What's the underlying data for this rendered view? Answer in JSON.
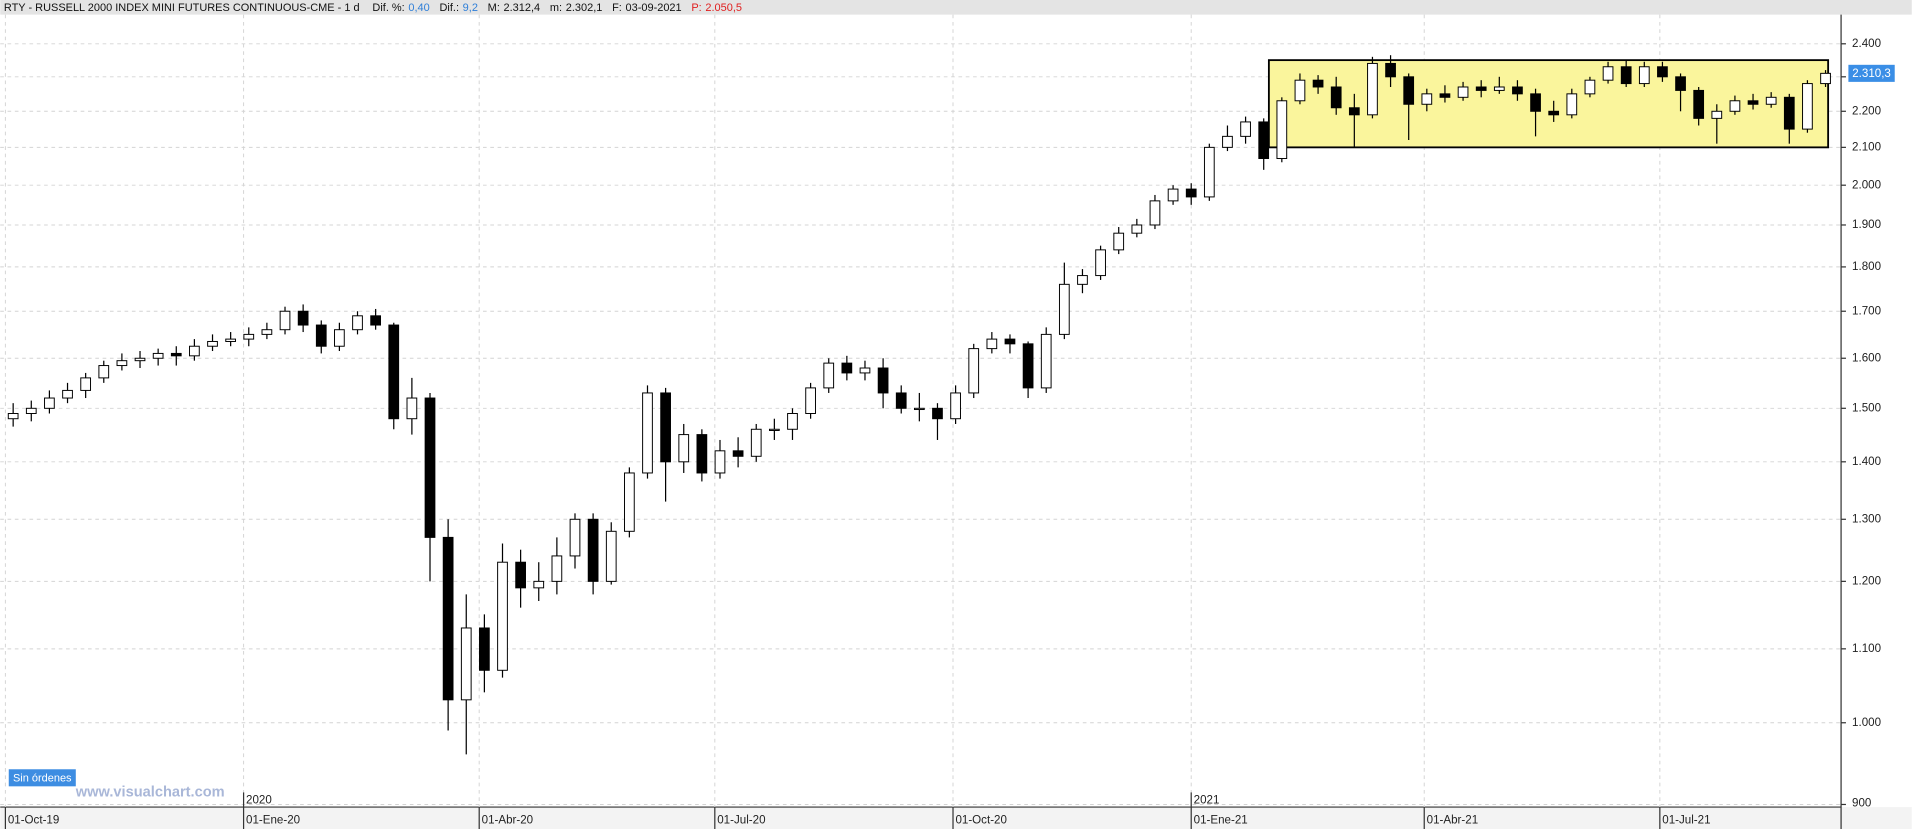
{
  "header": {
    "title": "RTY - RUSSELL 2000 INDEX MINI FUTURES CONTINUOUS-CME - 1 d",
    "items": [
      {
        "label": "Dif. %:",
        "value": "0,40",
        "color": "#2f7fd8"
      },
      {
        "label": "Dif.:",
        "value": "9,2",
        "color": "#2f7fd8"
      },
      {
        "label": "M:",
        "value": "2.312,4",
        "color": "#111111"
      },
      {
        "label": "m:",
        "value": "2.302,1",
        "color": "#111111"
      },
      {
        "label": "F:",
        "value": "03-09-2021",
        "color": "#111111"
      },
      {
        "label": "P:",
        "value": "2.050,5",
        "color": "#e02020"
      }
    ]
  },
  "footer": {
    "status": "Sin órdenes",
    "watermark": "www.visualchart.com"
  },
  "chart_data": {
    "type": "candlestick",
    "log": true,
    "grid": true,
    "up_color": "#ffffff",
    "down_color": "#000000",
    "wick_color": "#000000",
    "xlim": [
      "2019-09-29",
      "2021-09-09"
    ],
    "xticks": [
      {
        "value": "2019-10-01",
        "label": "01-Oct-19"
      },
      {
        "value": "2020-01-01",
        "label": "01-Ene-20"
      },
      {
        "value": "2020-04-01",
        "label": "01-Abr-20"
      },
      {
        "value": "2020-07-01",
        "label": "01-Jul-20"
      },
      {
        "value": "2020-10-01",
        "label": "01-Oct-20"
      },
      {
        "value": "2021-01-01",
        "label": "01-Ene-21"
      },
      {
        "value": "2021-04-01",
        "label": "01-Abr-21"
      },
      {
        "value": "2021-07-01",
        "label": "01-Jul-21"
      }
    ],
    "year_marks": [
      {
        "value": "2020-01-01",
        "label": "2020"
      },
      {
        "value": "2021-01-01",
        "label": "2021"
      }
    ],
    "ylim": [
      897,
      2492
    ],
    "yticks": [
      900,
      {
        "value": 1000,
        "label": "1.000"
      },
      {
        "value": 1100,
        "label": "1.100"
      },
      {
        "value": 1200,
        "label": "1.200"
      },
      {
        "value": 1300,
        "label": "1.300"
      },
      {
        "value": 1400,
        "label": "1.400"
      },
      {
        "value": 1500,
        "label": "1.500"
      },
      {
        "value": 1600,
        "label": "1.600"
      },
      {
        "value": 1700,
        "label": "1.700"
      },
      {
        "value": 1800,
        "label": "1.800"
      },
      {
        "value": 1900,
        "label": "1.900"
      },
      {
        "value": 2000,
        "label": "2.000"
      },
      {
        "value": 2100,
        "label": "2.100"
      },
      {
        "value": 2200,
        "label": "2.200"
      },
      {
        "value": 2300,
        "label": "2.300"
      },
      {
        "value": 2400,
        "label": "2.400"
      }
    ],
    "x": [
      "2019-10-04",
      "2019-10-11",
      "2019-10-18",
      "2019-10-25",
      "2019-11-01",
      "2019-11-08",
      "2019-11-15",
      "2019-11-22",
      "2019-11-29",
      "2019-12-06",
      "2019-12-13",
      "2019-12-20",
      "2019-12-27",
      "2020-01-03",
      "2020-01-10",
      "2020-01-17",
      "2020-01-24",
      "2020-01-31",
      "2020-02-07",
      "2020-02-14",
      "2020-02-21",
      "2020-02-28",
      "2020-03-06",
      "2020-03-13",
      "2020-03-20",
      "2020-03-27",
      "2020-04-03",
      "2020-04-10",
      "2020-04-17",
      "2020-04-24",
      "2020-05-01",
      "2020-05-08",
      "2020-05-15",
      "2020-05-22",
      "2020-05-29",
      "2020-06-05",
      "2020-06-12",
      "2020-06-19",
      "2020-06-26",
      "2020-07-03",
      "2020-07-10",
      "2020-07-17",
      "2020-07-24",
      "2020-07-31",
      "2020-08-07",
      "2020-08-14",
      "2020-08-21",
      "2020-08-28",
      "2020-09-04",
      "2020-09-11",
      "2020-09-18",
      "2020-09-25",
      "2020-10-02",
      "2020-10-09",
      "2020-10-16",
      "2020-10-23",
      "2020-10-30",
      "2020-11-06",
      "2020-11-13",
      "2020-11-20",
      "2020-11-27",
      "2020-12-04",
      "2020-12-11",
      "2020-12-18",
      "2020-12-25",
      "2021-01-01",
      "2021-01-08",
      "2021-01-15",
      "2021-01-22",
      "2021-01-29",
      "2021-02-05",
      "2021-02-12",
      "2021-02-19",
      "2021-02-26",
      "2021-03-05",
      "2021-03-12",
      "2021-03-19",
      "2021-03-26",
      "2021-04-02",
      "2021-04-09",
      "2021-04-16",
      "2021-04-23",
      "2021-04-30",
      "2021-05-07",
      "2021-05-14",
      "2021-05-21",
      "2021-05-28",
      "2021-06-04",
      "2021-06-11",
      "2021-06-18",
      "2021-06-25",
      "2021-07-02",
      "2021-07-09",
      "2021-07-16",
      "2021-07-23",
      "2021-07-30",
      "2021-08-06",
      "2021-08-13",
      "2021-08-20",
      "2021-08-27",
      "2021-09-03"
    ],
    "open": [
      1480,
      1490,
      1500,
      1520,
      1535,
      1560,
      1585,
      1595,
      1600,
      1610,
      1605,
      1625,
      1635,
      1640,
      1650,
      1660,
      1700,
      1670,
      1625,
      1660,
      1690,
      1670,
      1480,
      1520,
      1270,
      1030,
      1130,
      1070,
      1230,
      1190,
      1200,
      1240,
      1300,
      1200,
      1280,
      1380,
      1530,
      1400,
      1450,
      1380,
      1420,
      1410,
      1460,
      1460,
      1490,
      1540,
      1590,
      1570,
      1580,
      1530,
      1500,
      1500,
      1480,
      1530,
      1620,
      1640,
      1630,
      1540,
      1650,
      1760,
      1780,
      1840,
      1880,
      1900,
      1960,
      1990,
      1970,
      2100,
      2130,
      2170,
      2070,
      2230,
      2290,
      2270,
      2210,
      2190,
      2340,
      2300,
      2220,
      2250,
      2240,
      2270,
      2260,
      2270,
      2250,
      2200,
      2190,
      2250,
      2290,
      2330,
      2280,
      2330,
      2300,
      2260,
      2180,
      2200,
      2230,
      2220,
      2240,
      2150,
      2280
    ],
    "high": [
      1510,
      1515,
      1535,
      1550,
      1570,
      1595,
      1610,
      1615,
      1620,
      1625,
      1640,
      1650,
      1655,
      1665,
      1675,
      1710,
      1715,
      1680,
      1675,
      1700,
      1705,
      1675,
      1560,
      1530,
      1300,
      1180,
      1150,
      1260,
      1250,
      1230,
      1270,
      1310,
      1310,
      1295,
      1390,
      1545,
      1540,
      1470,
      1460,
      1440,
      1445,
      1470,
      1480,
      1500,
      1550,
      1600,
      1605,
      1595,
      1600,
      1545,
      1530,
      1510,
      1545,
      1630,
      1655,
      1650,
      1635,
      1665,
      1810,
      1795,
      1850,
      1895,
      1915,
      1975,
      2000,
      2005,
      2110,
      2160,
      2185,
      2180,
      2240,
      2310,
      2305,
      2300,
      2250,
      2360,
      2365,
      2310,
      2265,
      2275,
      2285,
      2290,
      2300,
      2290,
      2265,
      2230,
      2265,
      2300,
      2345,
      2350,
      2345,
      2345,
      2310,
      2270,
      2220,
      2245,
      2250,
      2255,
      2250,
      2290,
      2320
    ],
    "low": [
      1465,
      1475,
      1490,
      1510,
      1520,
      1550,
      1575,
      1580,
      1585,
      1585,
      1595,
      1615,
      1625,
      1625,
      1640,
      1650,
      1655,
      1610,
      1615,
      1650,
      1660,
      1460,
      1450,
      1200,
      990,
      960,
      1040,
      1060,
      1160,
      1170,
      1180,
      1220,
      1180,
      1195,
      1270,
      1370,
      1330,
      1380,
      1365,
      1370,
      1390,
      1400,
      1440,
      1440,
      1480,
      1530,
      1555,
      1555,
      1500,
      1490,
      1475,
      1440,
      1470,
      1520,
      1610,
      1610,
      1520,
      1530,
      1640,
      1740,
      1770,
      1830,
      1870,
      1890,
      1950,
      1950,
      1960,
      2090,
      2110,
      2040,
      2060,
      2220,
      2250,
      2190,
      2100,
      2180,
      2270,
      2120,
      2200,
      2225,
      2230,
      2240,
      2250,
      2230,
      2130,
      2170,
      2180,
      2240,
      2280,
      2270,
      2270,
      2285,
      2200,
      2160,
      2110,
      2190,
      2205,
      2210,
      2110,
      2140,
      2270
    ],
    "close": [
      1490,
      1500,
      1520,
      1535,
      1560,
      1585,
      1595,
      1600,
      1610,
      1605,
      1625,
      1635,
      1640,
      1650,
      1660,
      1700,
      1670,
      1625,
      1660,
      1690,
      1670,
      1480,
      1520,
      1270,
      1030,
      1130,
      1070,
      1230,
      1190,
      1200,
      1240,
      1300,
      1200,
      1280,
      1380,
      1530,
      1400,
      1450,
      1380,
      1420,
      1410,
      1460,
      1460,
      1490,
      1540,
      1590,
      1570,
      1580,
      1530,
      1500,
      1500,
      1480,
      1530,
      1620,
      1640,
      1630,
      1540,
      1650,
      1760,
      1780,
      1840,
      1880,
      1900,
      1960,
      1990,
      1970,
      2100,
      2130,
      2170,
      2070,
      2230,
      2290,
      2270,
      2210,
      2190,
      2340,
      2300,
      2220,
      2250,
      2240,
      2270,
      2260,
      2270,
      2250,
      2200,
      2190,
      2250,
      2290,
      2330,
      2280,
      2330,
      2300,
      2260,
      2180,
      2200,
      2230,
      2220,
      2240,
      2150,
      2280,
      2310.3
    ],
    "last_close_label": "2.310,3",
    "annotations": [
      {
        "type": "rect",
        "x": [
          "2021-01-31",
          "2021-09-04"
        ],
        "y": [
          2100,
          2350
        ],
        "color": "#faf59c"
      }
    ]
  }
}
